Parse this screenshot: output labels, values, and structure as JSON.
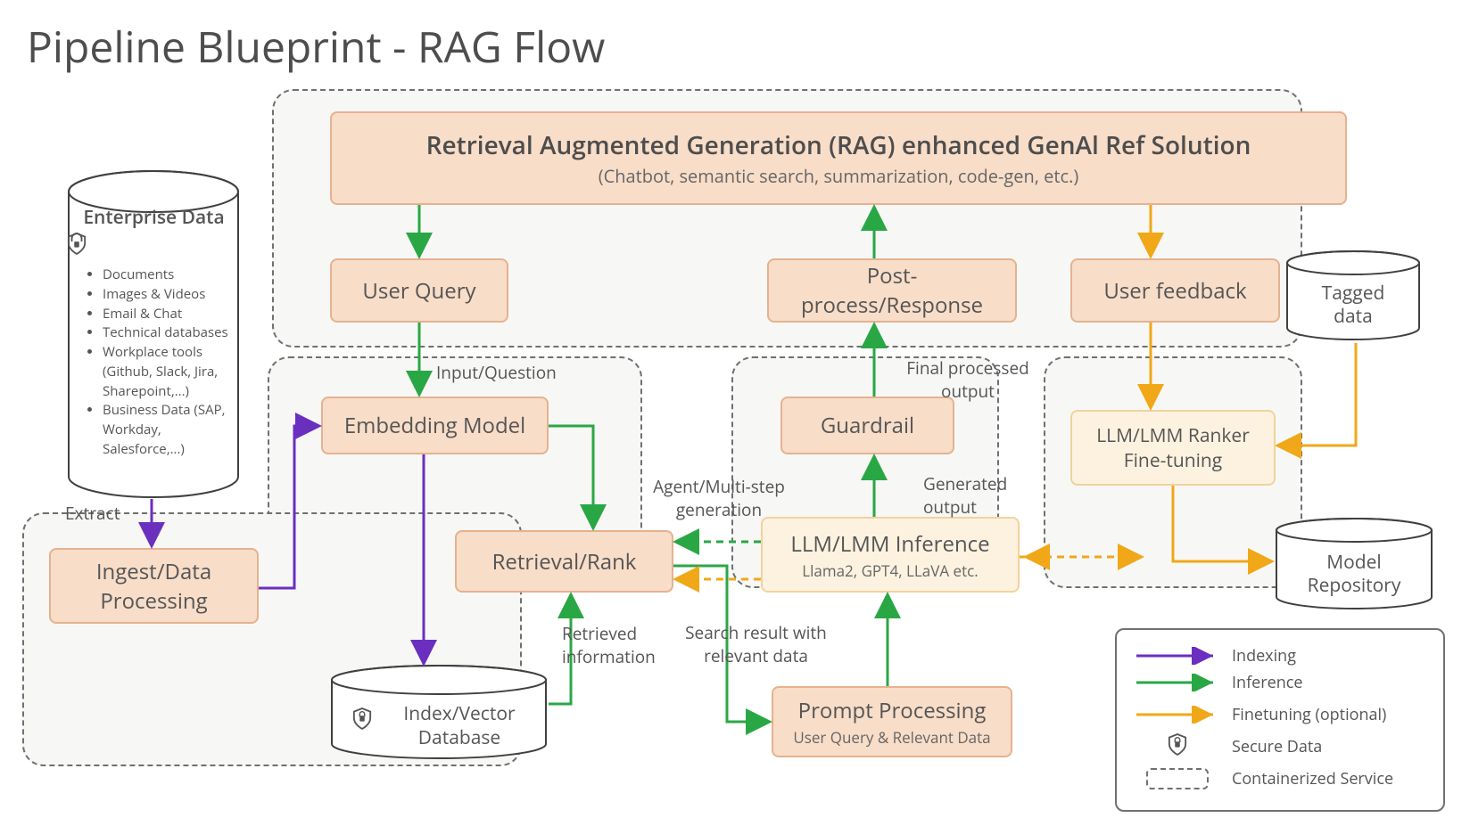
{
  "title": "Pipeline Blueprint - RAG Flow",
  "colors": {
    "box_fill": "#f8ddc8",
    "box_border": "#e5b28f",
    "box_light_fill": "#fdf2e0",
    "box_light_border": "#f2d39c",
    "dashed_border": "#707070",
    "dashed_fill": "#f7f7f5",
    "background": "#ffffff",
    "text": "#4d4d4d",
    "indexing": "#6b2fbf",
    "inference": "#2aa745",
    "finetuning": "#f0a818"
  },
  "enterprise": {
    "heading": "Enterprise Data",
    "items": [
      "Documents",
      "Images & Videos",
      "Email & Chat",
      "Technical databases",
      "Workplace tools (Github, Slack, Jira, Sharepoint,...)",
      "Business Data (SAP, Workday, Salesforce,...)"
    ]
  },
  "boxes": {
    "rag_header_title": "Retrieval Augmented Generation (RAG) enhanced GenAl Ref Solution",
    "rag_header_sub": "(Chatbot, semantic search, summarization, code-gen, etc.)",
    "user_query": "User Query",
    "post_process": "Post-process/Response",
    "user_feedback": "User feedback",
    "embedding": "Embedding Model",
    "guardrail": "Guardrail",
    "ranker": "LLM/LMM Ranker Fine-tuning",
    "retrieval": "Retrieval/Rank",
    "llm_inference": "LLM/LMM Inference",
    "llm_inference_sub": "Llama2, GPT4, LLaVA etc.",
    "prompt_proc": "Prompt Processing",
    "prompt_proc_sub": "User Query & Relevant Data",
    "ingest": "Ingest/Data Processing"
  },
  "cylinders": {
    "index_db": "Index/Vector Database",
    "tagged_data": "Tagged data",
    "model_repo": "Model Repository"
  },
  "labels": {
    "extract": "Extract",
    "input_question": "Input/Question",
    "agent_multi": "Agent/Multi-step generation",
    "final_output": "Final processed output",
    "generated_output": "Generated output",
    "search_result": "Search result with relevant data",
    "retrieved_info": "Retrieved information"
  },
  "legend": {
    "indexing": "Indexing",
    "inference": "Inference",
    "finetuning": "Finetuning (optional)",
    "secure": "Secure Data",
    "containerized": "Containerized Service"
  }
}
